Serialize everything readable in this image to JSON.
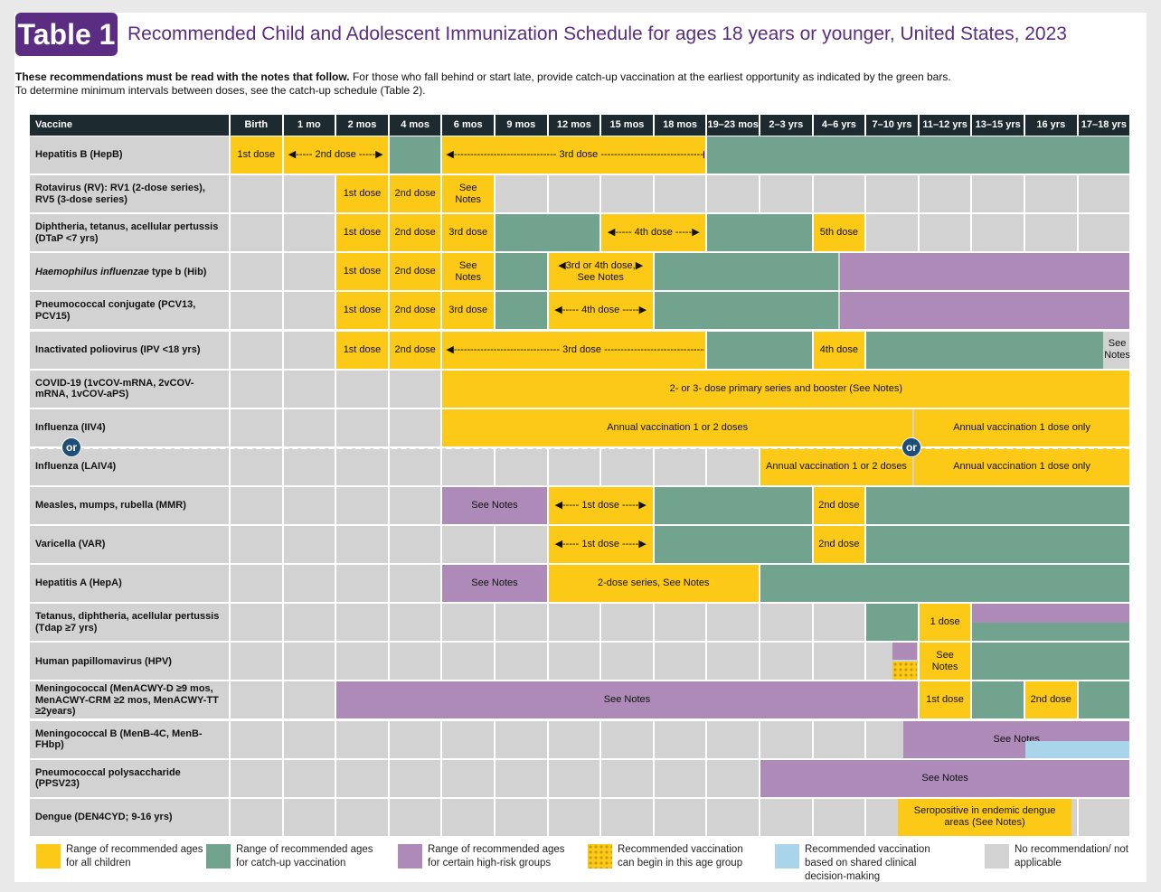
{
  "badge": "Table 1",
  "title": "Recommended Child and Adolescent Immunization Schedule for ages 18 years or younger, United States, 2023",
  "intro": {
    "bold": "These recommendations must be read with the notes that follow.",
    "line1": " For those who fall behind or start late, provide catch-up vaccination at the earliest opportunity as indicated by the green bars.",
    "line2": "To determine minimum intervals between doses, see the catch-up schedule (Table 2)."
  },
  "headers": [
    "Vaccine",
    "Birth",
    "1 mo",
    "2 mos",
    "4 mos",
    "6 mos",
    "9 mos",
    "12 mos",
    "15 mos",
    "18 mos",
    "19–23 mos",
    "2–3 yrs",
    "4–6 yrs",
    "7–10 yrs",
    "11–12 yrs",
    "13–15 yrs",
    "16 yrs",
    "17–18 yrs"
  ],
  "rows": [
    {
      "name": "Hepatitis B (HepB)",
      "segs": [
        [
          0,
          1,
          "yel",
          "1st dose"
        ],
        [
          1,
          3,
          "yel",
          "◀----- 2nd dose -----▶"
        ],
        [
          3,
          4,
          "grn",
          ""
        ],
        [
          4,
          9,
          "yel",
          "◀------------------------------- 3rd dose -------------------------------▶"
        ],
        [
          9,
          17,
          "grn",
          ""
        ]
      ]
    },
    {
      "name": "Rotavirus (RV): RV1 (2-dose series), RV5 (3-dose series)",
      "segs": [
        [
          2,
          3,
          "yel",
          "1st dose"
        ],
        [
          3,
          4,
          "yel",
          "2nd dose"
        ],
        [
          4,
          5,
          "yel",
          "See Notes"
        ]
      ]
    },
    {
      "name": "Diphtheria, tetanus, acellular pertussis (DTaP <7 yrs)",
      "segs": [
        [
          2,
          3,
          "yel",
          "1st dose"
        ],
        [
          3,
          4,
          "yel",
          "2nd dose"
        ],
        [
          4,
          5,
          "yel",
          "3rd dose"
        ],
        [
          5,
          7,
          "grn",
          ""
        ],
        [
          7,
          9,
          "yel",
          "◀----- 4th dose -----▶"
        ],
        [
          9,
          11,
          "grn",
          ""
        ],
        [
          11,
          12,
          "yel",
          "5th dose"
        ]
      ]
    },
    {
      "name": "Haemophilus influenzae type b (Hib)",
      "italic": "Haemophilus influenzae",
      "segs": [
        [
          2,
          3,
          "yel",
          "1st dose"
        ],
        [
          3,
          4,
          "yel",
          "2nd dose"
        ],
        [
          4,
          5,
          "yel",
          "See Notes"
        ],
        [
          5,
          6,
          "grn",
          ""
        ],
        [
          6,
          8,
          "yel",
          "◀3rd or 4th dose,▶ See Notes"
        ],
        [
          8,
          11.5,
          "grn",
          ""
        ],
        [
          11.5,
          17,
          "pur",
          ""
        ]
      ]
    },
    {
      "name": "Pneumococcal conjugate (PCV13, PCV15)",
      "segs": [
        [
          2,
          3,
          "yel",
          "1st dose"
        ],
        [
          3,
          4,
          "yel",
          "2nd dose"
        ],
        [
          4,
          5,
          "yel",
          "3rd dose"
        ],
        [
          5,
          6,
          "grn",
          ""
        ],
        [
          6,
          8,
          "yel",
          "◀----- 4th dose -----▶"
        ],
        [
          8,
          11.5,
          "grn",
          ""
        ],
        [
          11.5,
          17,
          "pur",
          ""
        ]
      ]
    },
    {
      "name": "Inactivated poliovirus (IPV <18 yrs)",
      "segs": [
        [
          2,
          3,
          "yel",
          "1st dose"
        ],
        [
          3,
          4,
          "yel",
          "2nd dose"
        ],
        [
          4,
          9,
          "yel",
          "◀-------------------------------- 3rd dose --------------------------------▶"
        ],
        [
          9,
          11,
          "grn",
          ""
        ],
        [
          11,
          12,
          "yel",
          "4th dose"
        ],
        [
          12,
          16.5,
          "grn",
          ""
        ],
        [
          16.5,
          17,
          "grey",
          "See Notes"
        ]
      ]
    },
    {
      "name": "COVID-19 (1vCOV-mRNA, 2vCOV-mRNA, 1vCOV-aPS)",
      "segs": [
        [
          4,
          17,
          "yel",
          "2- or 3- dose primary series and booster (See Notes)"
        ]
      ]
    },
    {
      "name": "Influenza (IIV4)",
      "half": "top",
      "segs": [
        [
          4,
          12.9,
          "yel",
          "Annual vaccination 1 or 2 doses"
        ],
        [
          12.9,
          17,
          "yel",
          "Annual vaccination 1 dose only"
        ]
      ]
    },
    {
      "name": "Influenza (LAIV4)",
      "half": "bot",
      "segs": [
        [
          10,
          12.9,
          "yel",
          "Annual vaccination 1 or 2 doses"
        ],
        [
          12.9,
          17,
          "yel",
          "Annual vaccination 1 dose only"
        ]
      ]
    },
    {
      "name": "Measles, mumps, rubella (MMR)",
      "segs": [
        [
          4,
          6,
          "pur",
          "See Notes"
        ],
        [
          6,
          8,
          "yel",
          "◀----- 1st dose -----▶"
        ],
        [
          8,
          11,
          "grn",
          ""
        ],
        [
          11,
          12,
          "yel",
          "2nd dose"
        ],
        [
          12,
          17,
          "grn",
          ""
        ]
      ]
    },
    {
      "name": "Varicella (VAR)",
      "segs": [
        [
          6,
          8,
          "yel",
          "◀----- 1st dose -----▶"
        ],
        [
          8,
          11,
          "grn",
          ""
        ],
        [
          11,
          12,
          "yel",
          "2nd dose"
        ],
        [
          12,
          17,
          "grn",
          ""
        ]
      ]
    },
    {
      "name": "Hepatitis A (HepA)",
      "segs": [
        [
          4,
          6,
          "pur",
          "See Notes"
        ],
        [
          6,
          10,
          "yel",
          "2-dose series, See Notes"
        ],
        [
          10,
          17,
          "grn",
          ""
        ]
      ]
    },
    {
      "name": "Tetanus, diphtheria, acellular pertussis (Tdap ≥7 yrs)",
      "segs": [
        [
          12,
          13,
          "grn",
          ""
        ],
        [
          13,
          14,
          "yel",
          "1 dose"
        ],
        [
          14,
          17,
          "pur",
          ""
        ]
      ]
    },
    {
      "name": "Human papillomavirus (HPV)",
      "segs": [
        [
          13,
          14,
          "yel",
          "See Notes"
        ],
        [
          14,
          17,
          "grn",
          ""
        ]
      ]
    },
    {
      "name": "Meningococcal (MenACWY-D ≥9 mos, MenACWY-CRM ≥2 mos, MenACWY-TT ≥2years)",
      "segs": [
        [
          2,
          13,
          "pur",
          "See Notes"
        ],
        [
          13,
          14,
          "yel",
          "1st dose"
        ],
        [
          14,
          15,
          "grn",
          ""
        ],
        [
          15,
          16,
          "yel",
          "2nd dose"
        ],
        [
          16,
          17,
          "grn",
          ""
        ]
      ]
    },
    {
      "name": "Meningococcal B (MenB-4C, MenB-FHbp)",
      "segs": [
        [
          12.7,
          17,
          "pur",
          "See Notes"
        ]
      ]
    },
    {
      "name": "Pneumococcal polysaccharide (PPSV23)",
      "segs": [
        [
          10,
          17,
          "pur",
          "See Notes"
        ]
      ]
    },
    {
      "name": "Dengue (DEN4CYD; 9-16 yrs)",
      "segs": [
        [
          12.6,
          15.9,
          "yel",
          "Seropositive in endemic dengue areas (See Notes)"
        ]
      ]
    }
  ],
  "or_label": "or",
  "legend": [
    {
      "color": "#fcc916",
      "text": "Range of recommended ages for all children"
    },
    {
      "color": "#72a38e",
      "text": "Range of recommended ages for catch-up vaccination"
    },
    {
      "color": "#ad8ab8",
      "text": "Range of recommended ages for certain high-risk groups"
    },
    {
      "color": "dots",
      "text": "Recommended vaccination can begin in this age group"
    },
    {
      "color": "#a9d4ea",
      "text": "Recommended vaccination based on shared clinical decision-making"
    },
    {
      "color": "#d2d2d3",
      "text": "No recommendation/ not applicable"
    }
  ]
}
